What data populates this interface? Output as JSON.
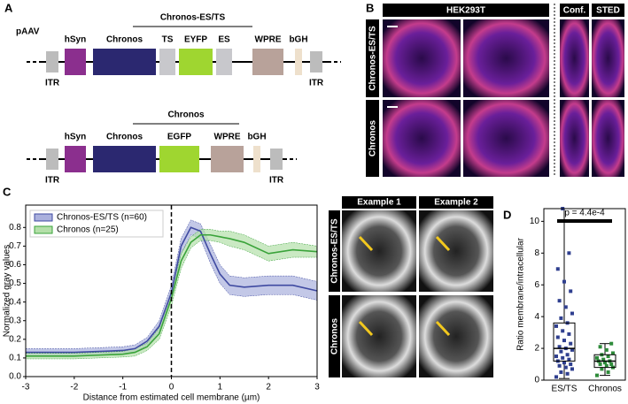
{
  "panel_a": {
    "label": "A",
    "vector": "pAAV",
    "constructs": [
      {
        "title": "Chronos-ES/TS",
        "elements": [
          "hSyn",
          "Chronos",
          "TS",
          "EYFP",
          "ES",
          "WPRE",
          "bGH"
        ],
        "itr": [
          "ITR",
          "ITR"
        ]
      },
      {
        "title": "Chronos",
        "elements": [
          "hSyn",
          "Chronos",
          "EGFP",
          "WPRE",
          "bGH"
        ],
        "itr": [
          "ITR",
          "ITR"
        ]
      }
    ]
  },
  "panel_b": {
    "label": "B",
    "headers": [
      "HEK293T",
      "Conf.",
      "STED"
    ],
    "rows": [
      "Chronos-ES/TS",
      "Chronos"
    ]
  },
  "panel_c_images": {
    "headers": [
      "Example 1",
      "Example 2"
    ],
    "rows": [
      "Chronos-ES/TS",
      "Chronos"
    ]
  },
  "chart_data": [
    {
      "type": "line",
      "panel_label": "C",
      "x_label": "Distance from estimated cell membrane (µm)",
      "y_label": "Normalized gray values",
      "x": [
        -3,
        -2.5,
        -2,
        -1.5,
        -1,
        -0.75,
        -0.5,
        -0.25,
        0,
        0.2,
        0.4,
        0.6,
        0.8,
        1,
        1.2,
        1.5,
        2,
        2.5,
        3
      ],
      "series": [
        {
          "name": "Chronos-ES/TS (n=60)",
          "color": "#3f4aa1",
          "band_color": "#aab0dd",
          "values": [
            0.13,
            0.13,
            0.13,
            0.135,
            0.14,
            0.15,
            0.19,
            0.27,
            0.45,
            0.7,
            0.8,
            0.78,
            0.66,
            0.55,
            0.49,
            0.48,
            0.49,
            0.49,
            0.46
          ],
          "errors": [
            0.02,
            0.02,
            0.02,
            0.02,
            0.02,
            0.02,
            0.02,
            0.03,
            0.04,
            0.04,
            0.04,
            0.04,
            0.05,
            0.05,
            0.05,
            0.05,
            0.05,
            0.05,
            0.05
          ]
        },
        {
          "name": "Chronos (n=25)",
          "color": "#3aa33a",
          "band_color": "#b4dfa9",
          "values": [
            0.11,
            0.11,
            0.11,
            0.115,
            0.12,
            0.13,
            0.16,
            0.23,
            0.42,
            0.62,
            0.72,
            0.76,
            0.76,
            0.75,
            0.74,
            0.72,
            0.66,
            0.68,
            0.67
          ],
          "errors": [
            0.015,
            0.015,
            0.015,
            0.015,
            0.015,
            0.02,
            0.02,
            0.03,
            0.04,
            0.04,
            0.03,
            0.03,
            0.03,
            0.03,
            0.04,
            0.04,
            0.04,
            0.04,
            0.03
          ]
        }
      ],
      "vline": 0,
      "xlim": [
        -3,
        3
      ],
      "xticks": [
        -3,
        -2,
        -1,
        0,
        1,
        2,
        3
      ],
      "ylim": [
        0,
        0.92
      ],
      "yticks": [
        {
          "value": 0,
          "label": "0.0"
        },
        0.1,
        0.2,
        0.3,
        0.4,
        0.5,
        0.6,
        0.7,
        0.8
      ],
      "legend": "upper-left"
    },
    {
      "type": "box",
      "panel_label": "D",
      "y_label": "Ratio membrane/intracellular",
      "categories": [
        "ES/TS",
        "Chronos"
      ],
      "colors": [
        "#2f3f8f",
        "#2e8b3a"
      ],
      "whisker_low": [
        0.1,
        0.3
      ],
      "q1": [
        1.2,
        0.8
      ],
      "median": [
        2.0,
        1.2
      ],
      "q3": [
        3.6,
        1.6
      ],
      "whisker_high": [
        10.8,
        2.3
      ],
      "points": [
        [
          0.2,
          0.4,
          0.5,
          0.7,
          0.8,
          0.9,
          1.0,
          1.1,
          1.2,
          1.3,
          1.4,
          1.5,
          1.6,
          1.8,
          1.9,
          2.0,
          2.1,
          2.3,
          2.5,
          2.7,
          2.9,
          3.1,
          3.4,
          3.6,
          3.9,
          4.2,
          4.6,
          5.0,
          5.6,
          6.2,
          7.0,
          8.0,
          10.8
        ],
        [
          0.3,
          0.5,
          0.7,
          0.8,
          0.9,
          1.0,
          1.0,
          1.1,
          1.2,
          1.2,
          1.3,
          1.4,
          1.5,
          1.6,
          1.7,
          1.9,
          2.1,
          2.3
        ]
      ],
      "annotation": "p = 4.4e-4",
      "ylim": [
        0,
        10.8
      ],
      "yticks": [
        0,
        2,
        4,
        6,
        8,
        10
      ]
    }
  ]
}
